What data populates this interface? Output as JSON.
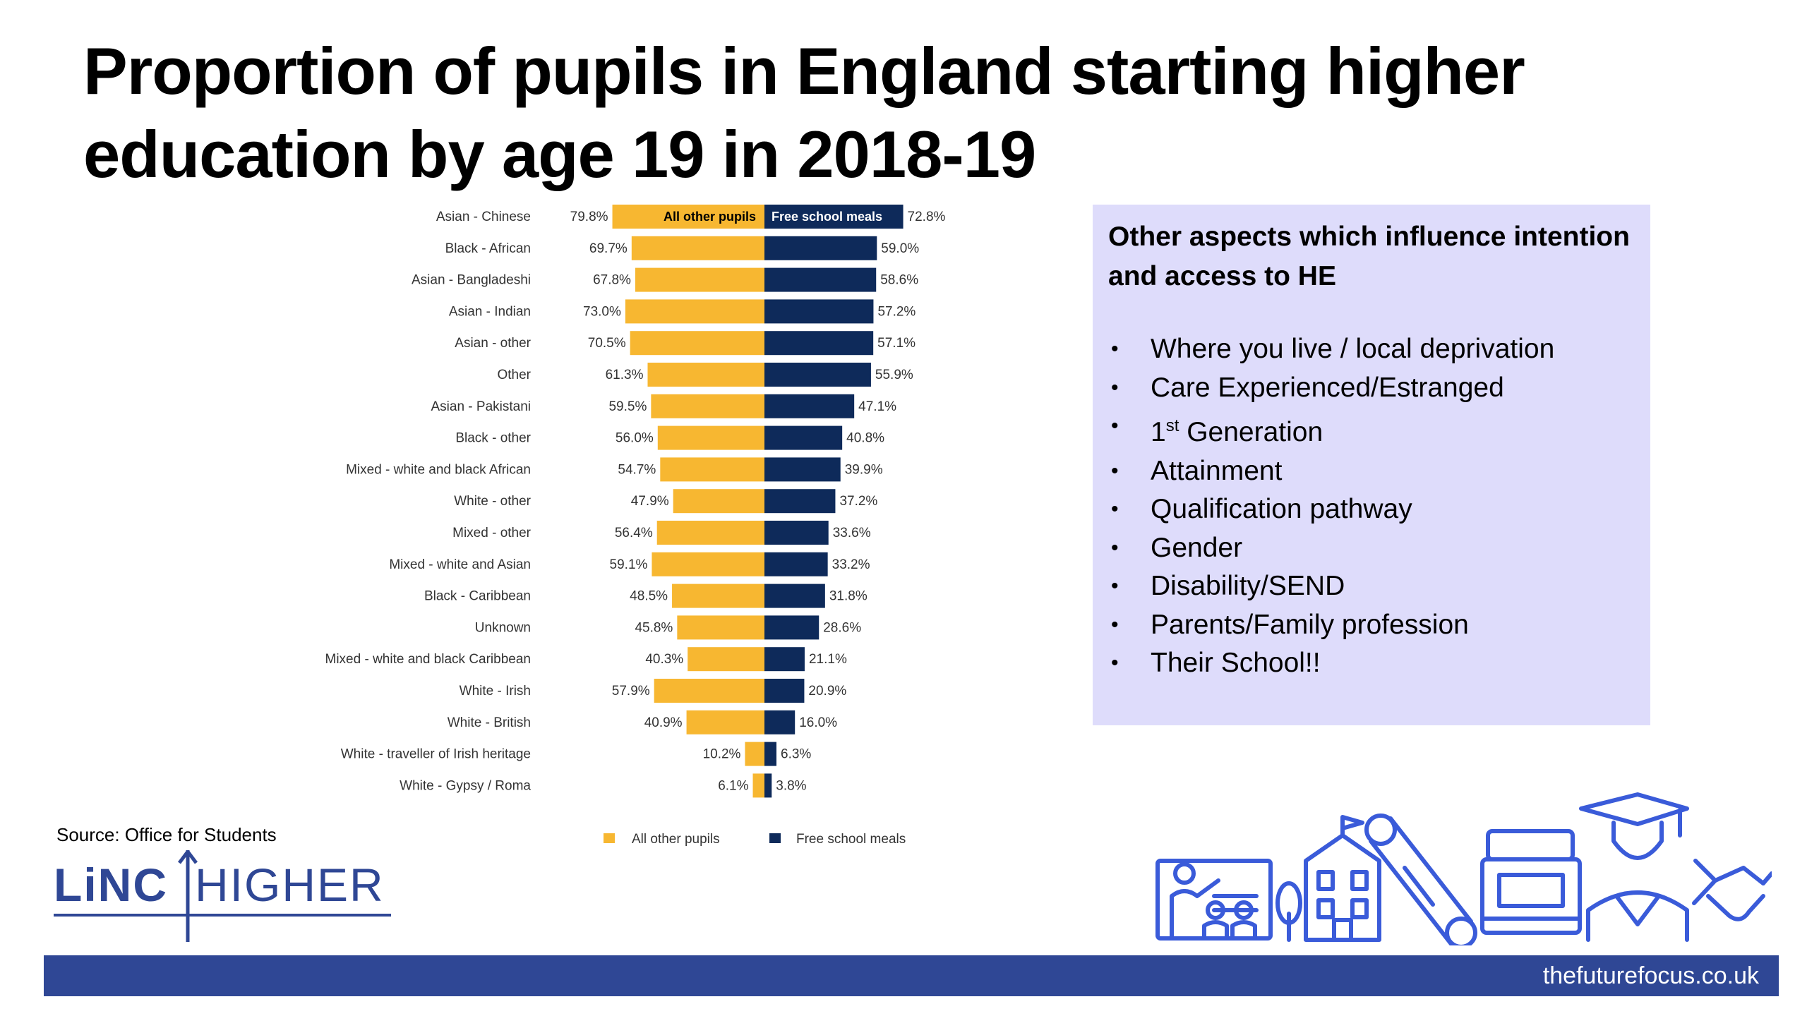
{
  "title": "Proportion of pupils in England starting higher education by age 19 in 2018-19",
  "chart_data": {
    "type": "bar",
    "orientation": "horizontal-diverging",
    "title": "",
    "unit": "%",
    "categories": [
      "Asian - Chinese",
      "Black - African",
      "Asian - Bangladeshi",
      "Asian - Indian",
      "Asian - other",
      "Other",
      "Asian - Pakistani",
      "Black - other",
      "Mixed - white and black African",
      "White - other",
      "Mixed - other",
      "Mixed - white and Asian",
      "Black - Caribbean",
      "Unknown",
      "Mixed - white and black Caribbean",
      "White - Irish",
      "White - British",
      "White - traveller of Irish heritage",
      "White - Gypsy / Roma"
    ],
    "series": [
      {
        "name": "All other pupils",
        "color": "#f7b731",
        "values": [
          79.8,
          69.7,
          67.8,
          73.0,
          70.5,
          61.3,
          59.5,
          56.0,
          54.7,
          47.9,
          56.4,
          59.1,
          48.5,
          45.8,
          40.3,
          57.9,
          40.9,
          10.2,
          6.1
        ]
      },
      {
        "name": "Free school meals",
        "color": "#0e2a5a",
        "values": [
          72.8,
          59.0,
          58.6,
          57.2,
          57.1,
          55.9,
          47.1,
          40.8,
          39.9,
          37.2,
          33.6,
          33.2,
          31.8,
          28.6,
          21.1,
          20.9,
          16.0,
          6.3,
          3.8
        ]
      }
    ],
    "legend_position": "bottom"
  },
  "aside": {
    "heading": "Other aspects which influence intention and access to HE",
    "items": [
      "Where you live / local deprivation",
      "Care Experienced/Estranged",
      "1st Generation",
      "Attainment",
      "Qualification pathway",
      "Gender",
      "Disability/SEND",
      "Parents/Family profession",
      "Their School!!"
    ]
  },
  "source": "Source: Office for Students",
  "logo": {
    "part1": "LiNC",
    "part2": "HIGHER"
  },
  "footer": {
    "url": "thefuturefocus.co.uk"
  },
  "colors": {
    "accent_blue": "#2f4795",
    "illustration_blue": "#3a5bd9",
    "aside_background": "#dedcfb"
  }
}
